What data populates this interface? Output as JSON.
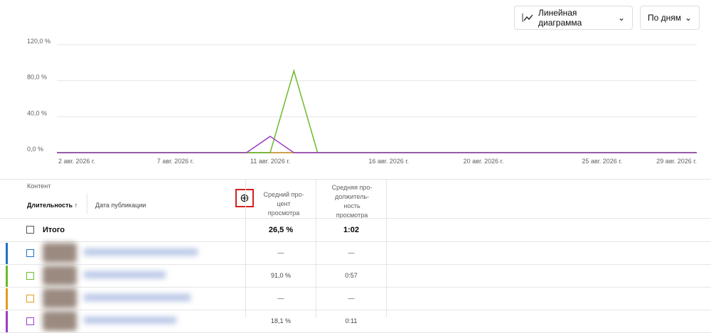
{
  "controls": {
    "chart_type": "Линейная диаграмма",
    "period": "По дням"
  },
  "chart_data": {
    "type": "line",
    "categories": [
      "2 авг. 2026 г.",
      null,
      null,
      null,
      null,
      "7 авг. 2026 г.",
      null,
      null,
      null,
      "11 авг. 2026 г.",
      null,
      null,
      null,
      null,
      "16 авг. 2026 г.",
      null,
      null,
      null,
      "20 авг. 2026 г.",
      null,
      null,
      null,
      null,
      "25 авг. 2026 г.",
      null,
      null,
      null,
      "29 авг. 2026 г."
    ],
    "series": [
      {
        "color": "#1c73c4",
        "values": [
          0,
          0,
          0,
          0,
          0,
          0,
          0,
          0,
          0,
          0,
          0,
          0,
          0,
          0,
          0,
          0,
          0,
          0,
          0,
          0,
          0,
          0,
          0,
          0,
          0,
          0,
          0,
          0
        ]
      },
      {
        "color": "#e69a1c",
        "values": [
          0,
          0,
          0,
          0,
          0,
          0,
          0,
          0,
          0,
          0,
          0,
          0,
          0,
          0,
          0,
          0,
          0,
          0,
          0,
          0,
          0,
          0,
          0,
          0,
          0,
          0,
          0,
          0
        ]
      },
      {
        "color": "#6cbb2a",
        "values": [
          0,
          0,
          0,
          0,
          0,
          0,
          0,
          0,
          0,
          0,
          91,
          0,
          0,
          0,
          0,
          0,
          0,
          0,
          0,
          0,
          0,
          0,
          0,
          0,
          0,
          0,
          0,
          0
        ]
      },
      {
        "color": "#9c3dc4",
        "values": [
          0,
          0,
          0,
          0,
          0,
          0,
          0,
          0,
          0,
          18.1,
          0,
          0,
          0,
          0,
          0,
          0,
          0,
          0,
          0,
          0,
          0,
          0,
          0,
          0,
          0,
          0,
          0,
          0
        ]
      }
    ],
    "ylim": [
      0,
      120
    ],
    "yticks": [
      {
        "value": 0,
        "label": "0,0 %"
      },
      {
        "value": 40,
        "label": "40,0 %"
      },
      {
        "value": 80,
        "label": "80,0 %"
      },
      {
        "value": 120,
        "label": "120,0 %"
      }
    ],
    "grid": true
  },
  "table": {
    "section": "Контент",
    "sort_column": "Длительность",
    "date_column": "Дата публикации",
    "col_percent": [
      "Средний про-",
      "цент",
      "просмотра"
    ],
    "col_duration": [
      "Средняя про-",
      "должитель-",
      "ность",
      "просмотра"
    ],
    "total": {
      "label": "Итого",
      "percent": "26,5 %",
      "duration": "1:02"
    },
    "rows": [
      {
        "color": "#1c73c4",
        "percent": "—",
        "duration": "—"
      },
      {
        "color": "#6cbb2a",
        "percent": "91,0 %",
        "duration": "0:57"
      },
      {
        "color": "#e69a1c",
        "percent": "—",
        "duration": "—"
      },
      {
        "color": "#9c3dc4",
        "percent": "18,1 %",
        "duration": "0:11"
      }
    ]
  }
}
